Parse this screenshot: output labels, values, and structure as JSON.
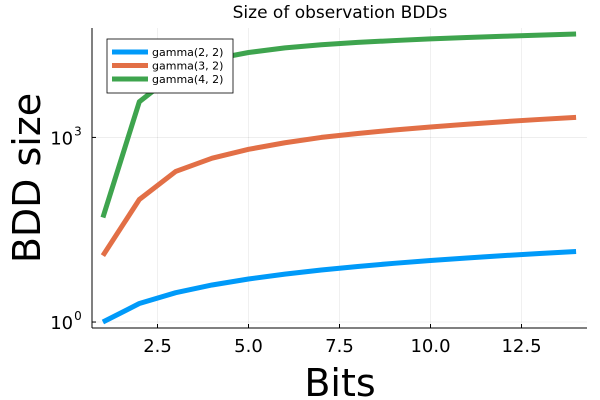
{
  "chart_data": {
    "type": "line",
    "title": "Size of observation BDDs",
    "xlabel": "Bits",
    "ylabel": "BDD size",
    "xscale": "linear",
    "yscale": "log10",
    "xlim": [
      0.7,
      14.3
    ],
    "ylim": [
      0.8,
      60000
    ],
    "xticks": [
      {
        "value": 2.5,
        "label": "2.5"
      },
      {
        "value": 5.0,
        "label": "5.0"
      },
      {
        "value": 7.5,
        "label": "7.5"
      },
      {
        "value": 10.0,
        "label": "10.0"
      },
      {
        "value": 12.5,
        "label": "12.5"
      }
    ],
    "yticks": [
      {
        "value": 1,
        "base": "10",
        "exp": "0"
      },
      {
        "value": 1000,
        "base": "10",
        "exp": "3"
      }
    ],
    "grid": true,
    "legend_position": "top-left",
    "x": [
      1,
      2,
      3,
      4,
      5,
      6,
      7,
      8,
      9,
      10,
      11,
      12,
      13,
      14
    ],
    "series": [
      {
        "name": "gamma(2, 2)",
        "color": "#009af9",
        "values": [
          1,
          2,
          3,
          4,
          5,
          6,
          7,
          8,
          9,
          10,
          11,
          12,
          13,
          14
        ]
      },
      {
        "name": "gamma(3, 2)",
        "color": "#e26f46",
        "values": [
          12,
          98,
          280,
          460,
          640,
          820,
          1000,
          1160,
          1320,
          1480,
          1640,
          1800,
          1960,
          2120
        ]
      },
      {
        "name": "gamma(4, 2)",
        "color": "#3ea44e",
        "values": [
          50,
          3800,
          11000,
          18500,
          24000,
          28500,
          32000,
          35000,
          37500,
          40000,
          42000,
          44000,
          46000,
          48000
        ]
      }
    ]
  }
}
